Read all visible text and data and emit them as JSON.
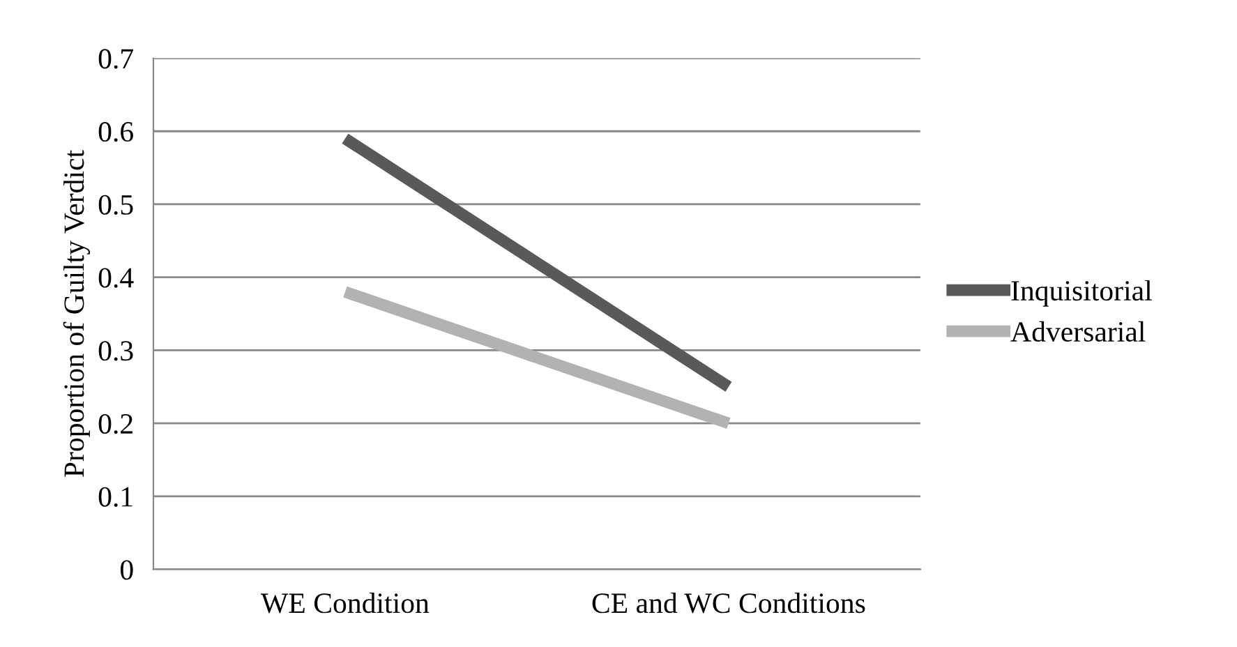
{
  "chart_data": {
    "type": "line",
    "ylabel": "Proportion of Guilty Verdict",
    "categories": [
      "WE Condition",
      "CE and WC Conditions"
    ],
    "series": [
      {
        "name": "Inquisitorial",
        "color": "#595959",
        "values": [
          0.59,
          0.25
        ]
      },
      {
        "name": "Adversarial",
        "color": "#b2b2b2",
        "values": [
          0.38,
          0.2
        ]
      }
    ],
    "ylim": [
      0,
      0.7
    ],
    "yticks": [
      0,
      0.1,
      0.2,
      0.3,
      0.4,
      0.5,
      0.6,
      0.7
    ],
    "grid": "y",
    "legend": "right",
    "marker": "none",
    "line_style": "solid"
  }
}
